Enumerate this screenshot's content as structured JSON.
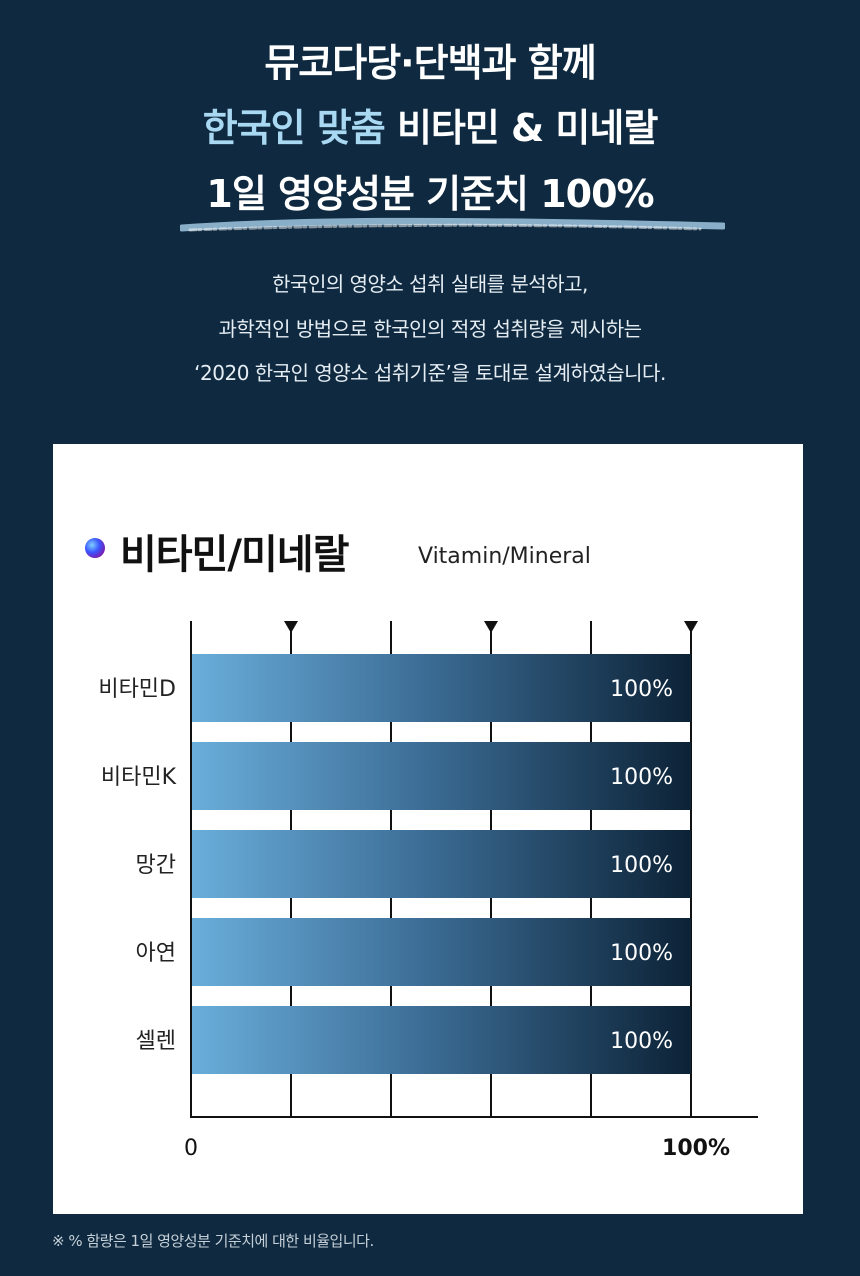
{
  "header": {
    "line1": "뮤코다당·단백과 함께",
    "line2_accent": "한국인 맞춤",
    "line2_rest": " 비타민 & 미네랄",
    "line3": "1일 영양성분 기준치 100%"
  },
  "intro": {
    "line1": "한국인의 영양소 섭취 실태를 분석하고,",
    "line2": "과학적인 방법으로 한국인의 적정 섭취량을 제시하는",
    "line3": "‘2020 한국인 영양소 섭취기준’을 토대로 설계하였습니다."
  },
  "footnote": "※ % 함량은 1일 영양성분 기준치에 대한 비율입니다.",
  "colors": {
    "background": "#0f2a40",
    "accent_text": "#a9d8f2",
    "bar_start": "#6aaedb",
    "bar_end": "#0c2236"
  },
  "chart_data": {
    "type": "bar",
    "orientation": "horizontal",
    "title": "비타민/미네랄",
    "subtitle": "Vitamin/Mineral",
    "categories": [
      "비타민D",
      "비타민K",
      "망간",
      "아연",
      "셀렌"
    ],
    "values": [
      100,
      100,
      100,
      100,
      100
    ],
    "value_labels": [
      "100%",
      "100%",
      "100%",
      "100%",
      "100%"
    ],
    "xlim": [
      0,
      100
    ],
    "tick_labels": {
      "min": "0",
      "max": "100%"
    },
    "grid": true,
    "marker_positions": [
      20,
      60,
      100
    ]
  }
}
